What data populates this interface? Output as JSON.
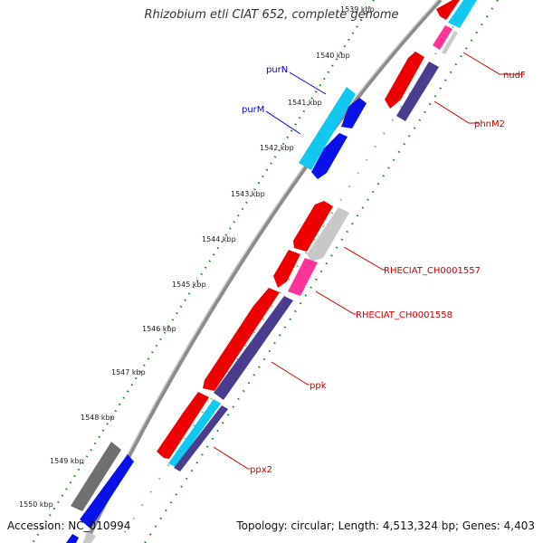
{
  "title": "Rhizobium etli CIAT 652, complete genome",
  "footer": {
    "accession": "Accession: NC_010994",
    "topology": "Topology: circular; Length: 4,513,324 bp; Genes: 4,403"
  },
  "ticks": [
    "1539 kbp",
    "1540 kbp",
    "1541 kbp",
    "1542 kbp",
    "1543 kbp",
    "1544 kbp",
    "1545 kbp",
    "1546 kbp",
    "1547 kbp",
    "1548 kbp",
    "1549 kbp",
    "1550 kbp"
  ],
  "labels": [
    {
      "text": "purN",
      "color": "#0000cc"
    },
    {
      "text": "purM",
      "color": "#0000cc"
    },
    {
      "text": "nudF",
      "color": "#cc0000"
    },
    {
      "text": "phnM2",
      "color": "#cc0000"
    },
    {
      "text": "RHECIAT_CH0001557",
      "color": "#cc0000"
    },
    {
      "text": "RHECIAT_CH0001558",
      "color": "#cc0000"
    },
    {
      "text": "ppk",
      "color": "#cc0000"
    },
    {
      "text": "ppx2",
      "color": "#cc0000"
    }
  ],
  "colors": {
    "backbone": "#8c8c8c",
    "tick_dots": "#1a8a1a",
    "leader_blue": "#0000cc",
    "leader_red": "#cc0000",
    "gene_red": "#ee0000",
    "gene_dark_purple": "#4a3d8f",
    "gene_cyan": "#10c8f0",
    "gene_blue": "#0a10e8",
    "gene_pink": "#ff3399",
    "gene_light_gray": "#c8c8c8",
    "gene_dark_gray": "#707070"
  }
}
